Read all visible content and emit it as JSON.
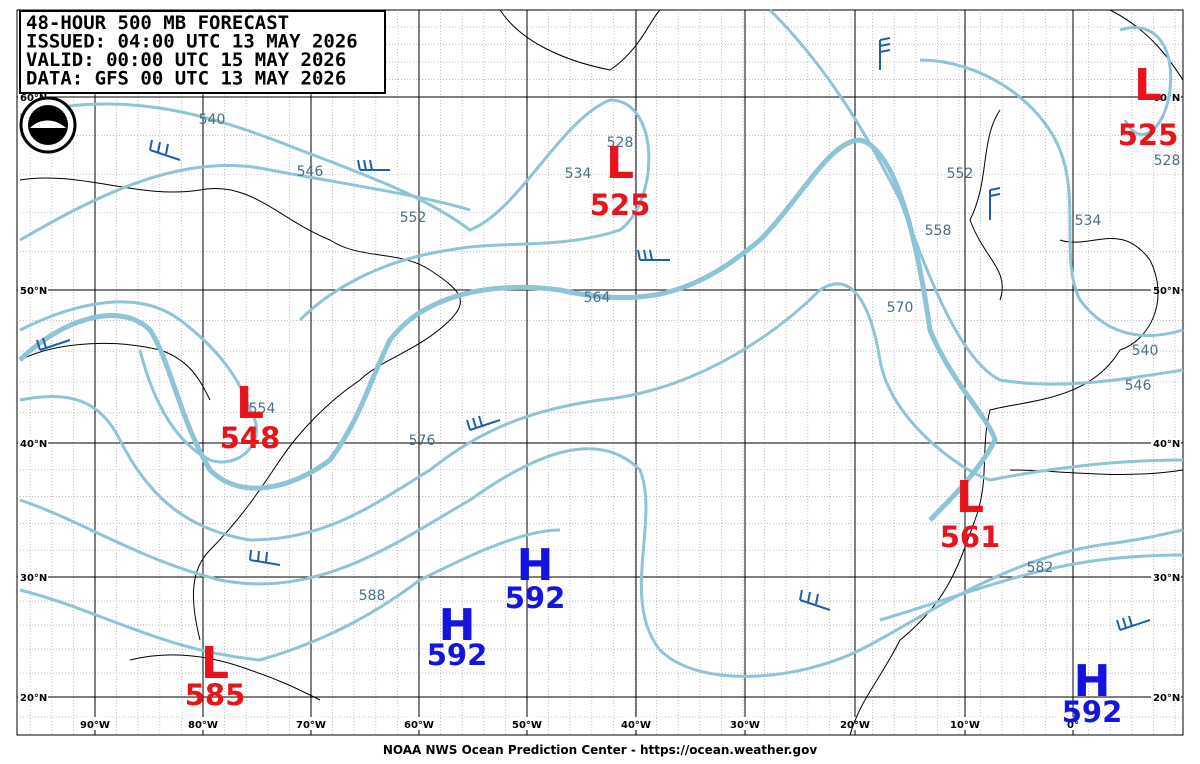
{
  "header": {
    "lines": [
      "48-HOUR 500 MB FORECAST",
      "ISSUED: 04:00 UTC 13 MAY 2026",
      "VALID:  00:00 UTC 15 MAY 2026",
      "DATA:  GFS 00 UTC 13 MAY 2026"
    ]
  },
  "lat_labels": [
    "60°N",
    "50°N",
    "40°N",
    "30°N",
    "20°N"
  ],
  "lon_labels": [
    "90°W",
    "80°W",
    "70°W",
    "60°W",
    "50°W",
    "40°W",
    "30°W",
    "20°W",
    "10°W",
    "0°"
  ],
  "centers": [
    {
      "symbol": "L",
      "value": 525
    },
    {
      "symbol": "L",
      "value": 525
    },
    {
      "symbol": "L",
      "value": 548
    },
    {
      "symbol": "L",
      "value": 561
    },
    {
      "symbol": "L",
      "value": 585
    },
    {
      "symbol": "H",
      "value": 592
    },
    {
      "symbol": "H",
      "value": 592
    },
    {
      "symbol": "H",
      "value": 592
    }
  ],
  "contour_labels": [
    "540",
    "546",
    "552",
    "528",
    "534",
    "564",
    "554",
    "576",
    "588",
    "570",
    "558",
    "552",
    "534",
    "540",
    "546",
    "582",
    "528"
  ],
  "footer": "NOAA NWS Ocean Prediction Center - https://ocean.weather.gov"
}
